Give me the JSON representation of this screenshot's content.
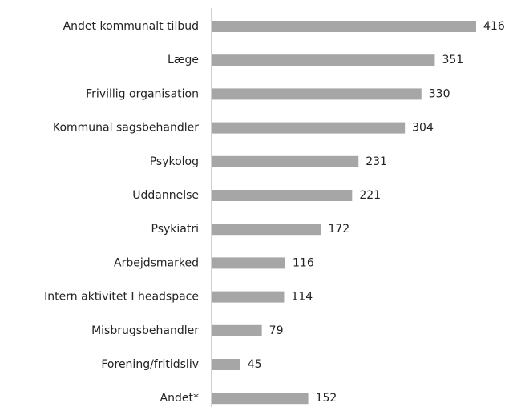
{
  "chart_data": {
    "type": "bar",
    "orientation": "horizontal",
    "categories": [
      "Andet kommunalt tilbud",
      "Læge",
      "Frivillig organisation",
      "Kommunal sagsbehandler",
      "Psykolog",
      "Uddannelse",
      "Psykiatri",
      "Arbejdsmarked",
      "Intern aktivitet I headspace",
      "Misbrugsbehandler",
      "Forening/fritidsliv",
      "Andet*"
    ],
    "values": [
      416,
      351,
      330,
      304,
      231,
      221,
      172,
      116,
      114,
      79,
      45,
      152
    ],
    "color": "#a6a6a6"
  }
}
